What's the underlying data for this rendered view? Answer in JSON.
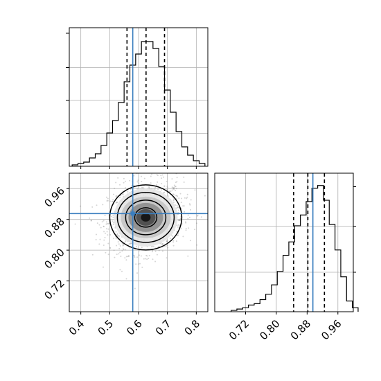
{
  "chart_data": [
    {
      "panel": "marginal-x-top",
      "type": "histogram",
      "xlim": [
        0.36,
        0.84
      ],
      "bins": [
        {
          "x": 0.38,
          "count": 1
        },
        {
          "x": 0.4,
          "count": 2
        },
        {
          "x": 0.42,
          "count": 3
        },
        {
          "x": 0.44,
          "count": 6
        },
        {
          "x": 0.46,
          "count": 9
        },
        {
          "x": 0.48,
          "count": 15
        },
        {
          "x": 0.5,
          "count": 24
        },
        {
          "x": 0.52,
          "count": 33
        },
        {
          "x": 0.54,
          "count": 46
        },
        {
          "x": 0.56,
          "count": 61
        },
        {
          "x": 0.58,
          "count": 73
        },
        {
          "x": 0.6,
          "count": 81
        },
        {
          "x": 0.62,
          "count": 90
        },
        {
          "x": 0.64,
          "count": 90
        },
        {
          "x": 0.66,
          "count": 85
        },
        {
          "x": 0.68,
          "count": 72
        },
        {
          "x": 0.7,
          "count": 55
        },
        {
          "x": 0.72,
          "count": 39
        },
        {
          "x": 0.74,
          "count": 25
        },
        {
          "x": 0.76,
          "count": 14
        },
        {
          "x": 0.78,
          "count": 8
        },
        {
          "x": 0.8,
          "count": 4
        },
        {
          "x": 0.82,
          "count": 2
        }
      ],
      "quantiles": [
        0.56,
        0.626,
        0.69
      ],
      "truth": 0.58
    },
    {
      "panel": "joint-2d",
      "type": "scatter",
      "xlim": [
        0.36,
        0.84
      ],
      "ylim": [
        0.64,
        1.0
      ],
      "x_ticks": [
        "0.4",
        "0.5",
        "0.6",
        "0.7",
        "0.8"
      ],
      "y_ticks": [
        "0.72",
        "0.80",
        "0.88",
        "0.96"
      ],
      "center": {
        "x": 0.625,
        "y": 0.885
      },
      "truth": {
        "x": 0.58,
        "y": 0.895
      },
      "contour_levels": 4,
      "grid": true
    },
    {
      "panel": "marginal-y-right",
      "type": "histogram",
      "xlim": [
        0.64,
        1.0
      ],
      "x_ticks": [
        "0.72",
        "0.80",
        "0.88",
        "0.96"
      ],
      "bins": [
        {
          "x": 0.69,
          "count": 1
        },
        {
          "x": 0.705,
          "count": 2
        },
        {
          "x": 0.72,
          "count": 3
        },
        {
          "x": 0.735,
          "count": 5
        },
        {
          "x": 0.75,
          "count": 6
        },
        {
          "x": 0.765,
          "count": 9
        },
        {
          "x": 0.78,
          "count": 13
        },
        {
          "x": 0.795,
          "count": 20
        },
        {
          "x": 0.81,
          "count": 30
        },
        {
          "x": 0.825,
          "count": 42
        },
        {
          "x": 0.84,
          "count": 52
        },
        {
          "x": 0.855,
          "count": 64
        },
        {
          "x": 0.87,
          "count": 72
        },
        {
          "x": 0.885,
          "count": 82
        },
        {
          "x": 0.9,
          "count": 92
        },
        {
          "x": 0.915,
          "count": 94
        },
        {
          "x": 0.93,
          "count": 83
        },
        {
          "x": 0.945,
          "count": 65
        },
        {
          "x": 0.96,
          "count": 46
        },
        {
          "x": 0.975,
          "count": 26
        },
        {
          "x": 0.99,
          "count": 8
        },
        {
          "x": 1.005,
          "count": 3
        }
      ],
      "quantiles": [
        0.845,
        0.882,
        0.925
      ],
      "truth": 0.895
    }
  ],
  "colors": {
    "truth": "#3a7ebf",
    "hist": "#000000",
    "scatter": "#888888",
    "grid": "#b0b0b0"
  }
}
